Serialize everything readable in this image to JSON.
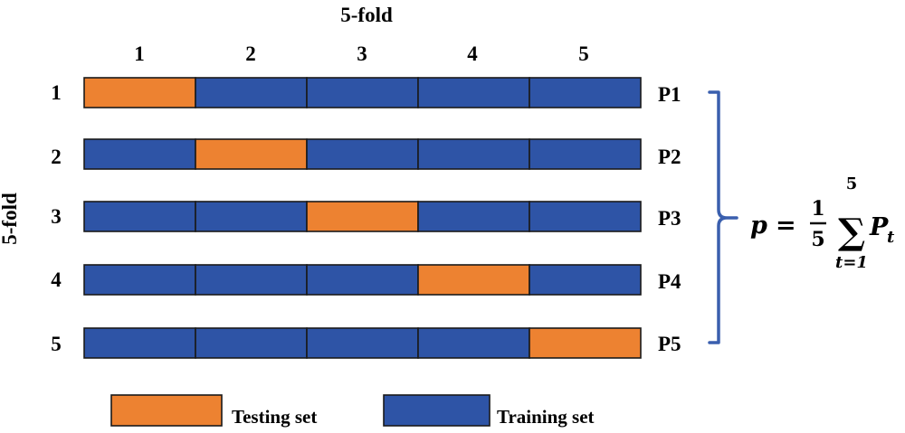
{
  "title_top": "5-fold",
  "title_left": "5-fold",
  "colors": {
    "testing": "#ED8231",
    "training": "#2E54A6",
    "bracket": "#3A5FAE",
    "border": "#1a1a1a"
  },
  "column_labels": [
    "1",
    "2",
    "3",
    "4",
    "5"
  ],
  "rows": [
    {
      "label": "1",
      "result": "P1",
      "test_fold": 1
    },
    {
      "label": "2",
      "result": "P2",
      "test_fold": 2
    },
    {
      "label": "3",
      "result": "P3",
      "test_fold": 3
    },
    {
      "label": "4",
      "result": "P4",
      "test_fold": 4
    },
    {
      "label": "5",
      "result": "P5",
      "test_fold": 5
    }
  ],
  "formula": {
    "lhs": "p",
    "equals": "=",
    "numerator": "1",
    "denominator": "5",
    "sigma": "∑",
    "upper": "5",
    "lower": "t=1",
    "term": "P",
    "subscript": "t"
  },
  "legend": [
    {
      "label": "Testing set",
      "kind": "testing"
    },
    {
      "label": "Training set",
      "kind": "training"
    }
  ]
}
